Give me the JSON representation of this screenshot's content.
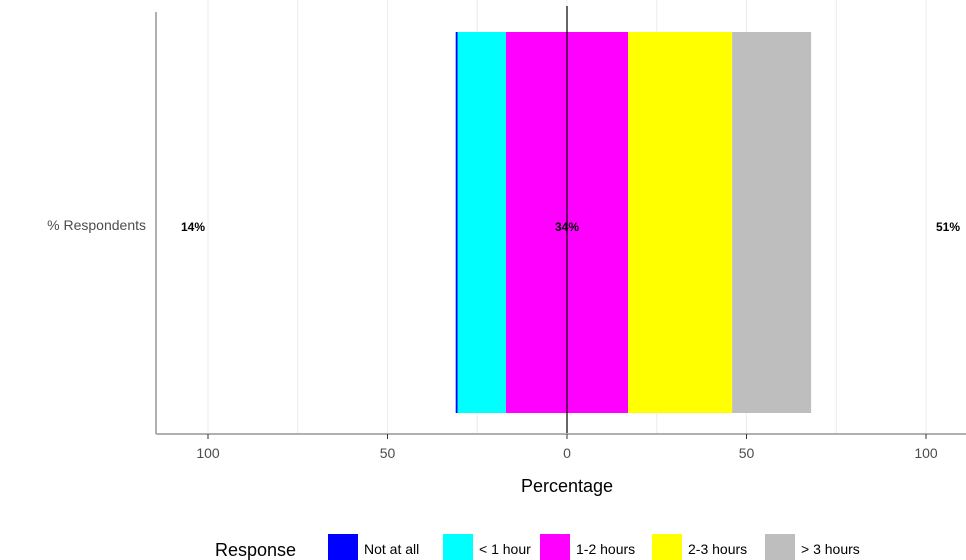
{
  "chart_data": {
    "type": "bar",
    "orientation": "horizontal-diverging",
    "categories": [
      "% Respondents"
    ],
    "x_ticks": [
      -100,
      -50,
      0,
      50,
      100
    ],
    "x_tick_labels": [
      "100",
      "50",
      "0",
      "50",
      "100"
    ],
    "xlim": [
      -115,
      112
    ],
    "xlabel": "Percentage",
    "grid": true,
    "series": [
      {
        "name": "Not at all",
        "color": "#0000FF",
        "start": -31,
        "end": -30.5
      },
      {
        "name": "< 1 hour",
        "color": "#00FFFF",
        "start": -30.5,
        "end": -17
      },
      {
        "name": "1-2 hours",
        "color": "#FF00FF",
        "start": -17,
        "end": 17
      },
      {
        "name": "2-3 hours",
        "color": "#FFFF00",
        "start": 17,
        "end": 46
      },
      {
        "name": "> 3 hours",
        "color": "#BEBEBE",
        "start": 46,
        "end": 68
      }
    ],
    "annotations": [
      {
        "text": "14%",
        "position": "left"
      },
      {
        "text": "34%",
        "position": "center"
      },
      {
        "text": "51%",
        "position": "right"
      }
    ],
    "legend": {
      "title": "Response",
      "placement": "bottom"
    }
  }
}
